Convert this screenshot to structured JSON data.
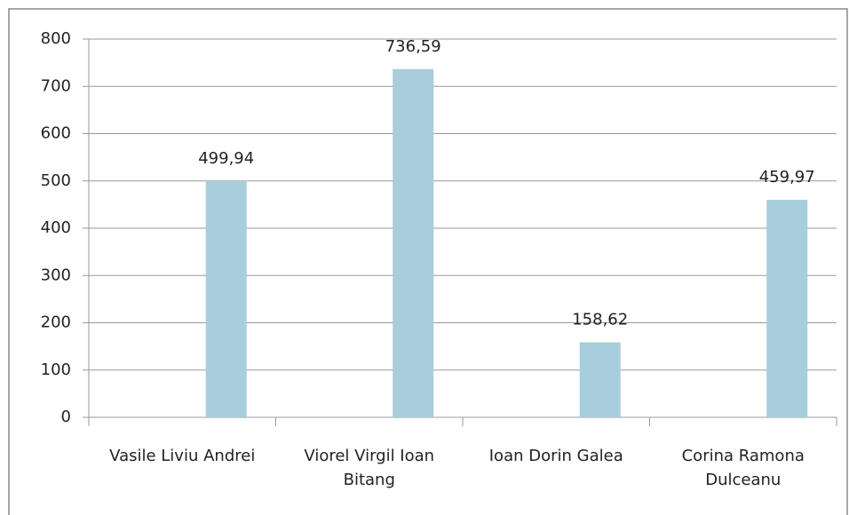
{
  "chart_data": {
    "type": "bar",
    "categories": [
      "Vasile Liviu Andrei",
      "Viorel Virgil Ioan Bitang",
      "Ioan Dorin Galea",
      "Corina Ramona Dulceanu"
    ],
    "values": [
      499.94,
      736.59,
      158.62,
      459.97
    ],
    "value_labels": [
      "499,94",
      "736,59",
      "158,62",
      "459,97"
    ],
    "color": "#a8cddb",
    "ylim": [
      0,
      800
    ],
    "yticks": [
      0,
      100,
      200,
      300,
      400,
      500,
      600,
      700,
      800
    ],
    "grid": true
  }
}
